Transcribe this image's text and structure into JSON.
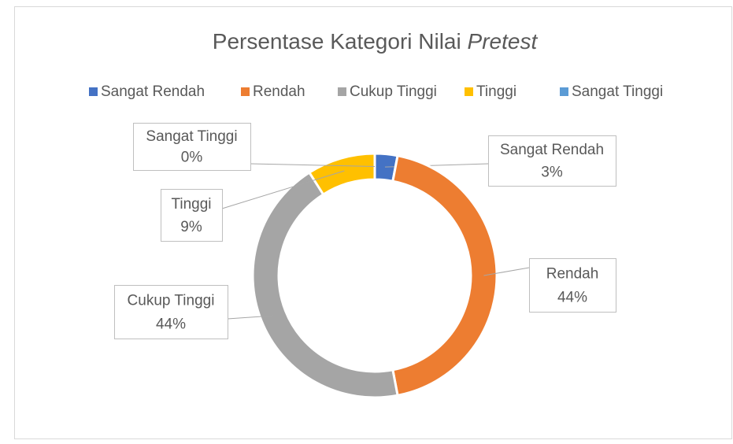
{
  "chart_data": {
    "type": "donut",
    "title": [
      "Persentase Kategori Nilai",
      "Pretest"
    ],
    "categories": [
      "Sangat Rendah",
      "Rendah",
      "Cukup Tinggi",
      "Tinggi",
      "Sangat Tinggi"
    ],
    "values": [
      3,
      44,
      44,
      9,
      0
    ],
    "value_labels": [
      "3%",
      "44%",
      "44%",
      "9%",
      "0%"
    ],
    "colors": [
      "#4472c4",
      "#ed7d31",
      "#a5a5a5",
      "#ffc000",
      "#5b9bd5"
    ],
    "legend": "top"
  }
}
